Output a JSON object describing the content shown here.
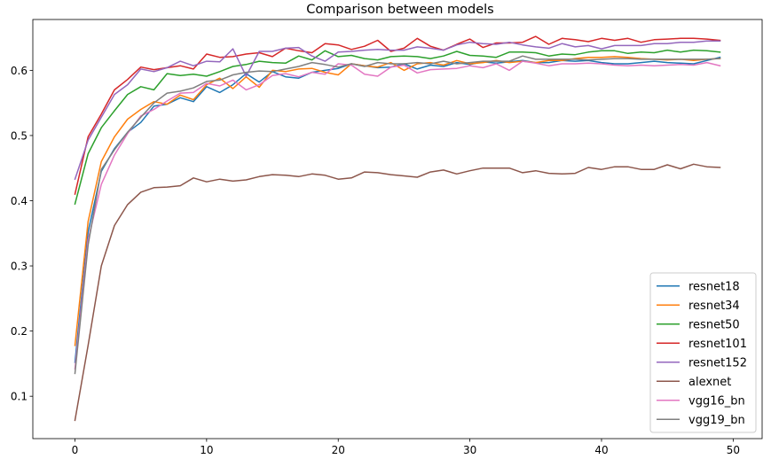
{
  "chart_data": {
    "type": "line",
    "title": "Comparison between models",
    "xlabel": "",
    "ylabel": "",
    "xlim": [
      -3.2,
      52.2
    ],
    "ylim": [
      0.035,
      0.678
    ],
    "xticks": [
      0,
      10,
      20,
      30,
      40,
      50
    ],
    "yticks": [
      0.1,
      0.2,
      0.3,
      0.4,
      0.5,
      0.6
    ],
    "grid": false,
    "legend_position": "lower-right",
    "x": [
      0,
      1,
      2,
      3,
      4,
      5,
      6,
      7,
      8,
      9,
      10,
      11,
      12,
      13,
      14,
      15,
      16,
      17,
      18,
      19,
      20,
      21,
      22,
      23,
      24,
      25,
      26,
      27,
      28,
      29,
      30,
      31,
      32,
      33,
      34,
      35,
      36,
      37,
      38,
      39,
      40,
      41,
      42,
      43,
      44,
      45,
      46,
      47,
      48,
      49
    ],
    "series": [
      {
        "name": "resnet18",
        "color": "#1f77b4",
        "values": [
          0.152,
          0.352,
          0.445,
          0.48,
          0.505,
          0.52,
          0.545,
          0.548,
          0.558,
          0.552,
          0.575,
          0.566,
          0.578,
          0.595,
          0.582,
          0.598,
          0.59,
          0.588,
          0.597,
          0.6,
          0.603,
          0.61,
          0.607,
          0.604,
          0.605,
          0.61,
          0.602,
          0.608,
          0.606,
          0.612,
          0.609,
          0.613,
          0.611,
          0.613,
          0.615,
          0.612,
          0.612,
          0.615,
          0.614,
          0.615,
          0.612,
          0.61,
          0.61,
          0.612,
          0.614,
          0.612,
          0.611,
          0.61,
          0.615,
          0.62
        ]
      },
      {
        "name": "resnet34",
        "color": "#ff7f0e",
        "values": [
          0.178,
          0.368,
          0.46,
          0.498,
          0.525,
          0.54,
          0.552,
          0.548,
          0.562,
          0.555,
          0.578,
          0.588,
          0.572,
          0.59,
          0.574,
          0.6,
          0.598,
          0.602,
          0.603,
          0.597,
          0.593,
          0.61,
          0.607,
          0.605,
          0.612,
          0.6,
          0.61,
          0.612,
          0.608,
          0.615,
          0.61,
          0.612,
          0.615,
          0.612,
          0.614,
          0.612,
          0.615,
          0.615,
          0.618,
          0.62,
          0.62,
          0.621,
          0.62,
          0.618,
          0.617,
          0.616,
          0.617,
          0.615,
          0.617,
          0.618
        ]
      },
      {
        "name": "resnet50",
        "color": "#2ca02c",
        "values": [
          0.395,
          0.472,
          0.512,
          0.538,
          0.563,
          0.575,
          0.57,
          0.595,
          0.592,
          0.594,
          0.591,
          0.598,
          0.606,
          0.609,
          0.614,
          0.612,
          0.611,
          0.622,
          0.616,
          0.63,
          0.621,
          0.623,
          0.618,
          0.616,
          0.621,
          0.622,
          0.621,
          0.618,
          0.622,
          0.629,
          0.623,
          0.622,
          0.62,
          0.628,
          0.628,
          0.627,
          0.622,
          0.625,
          0.624,
          0.628,
          0.63,
          0.63,
          0.626,
          0.628,
          0.627,
          0.631,
          0.628,
          0.631,
          0.63,
          0.628
        ]
      },
      {
        "name": "resnet101",
        "color": "#d62728",
        "values": [
          0.41,
          0.498,
          0.533,
          0.57,
          0.586,
          0.605,
          0.601,
          0.604,
          0.607,
          0.602,
          0.625,
          0.62,
          0.621,
          0.625,
          0.627,
          0.621,
          0.634,
          0.63,
          0.627,
          0.641,
          0.639,
          0.632,
          0.637,
          0.646,
          0.629,
          0.634,
          0.649,
          0.637,
          0.631,
          0.64,
          0.648,
          0.635,
          0.642,
          0.642,
          0.643,
          0.652,
          0.64,
          0.649,
          0.647,
          0.644,
          0.649,
          0.646,
          0.649,
          0.643,
          0.647,
          0.648,
          0.649,
          0.649,
          0.648,
          0.646
        ]
      },
      {
        "name": "resnet152",
        "color": "#9467bd",
        "values": [
          0.433,
          0.493,
          0.528,
          0.563,
          0.578,
          0.602,
          0.598,
          0.604,
          0.614,
          0.607,
          0.614,
          0.613,
          0.633,
          0.591,
          0.629,
          0.629,
          0.634,
          0.635,
          0.622,
          0.614,
          0.628,
          0.629,
          0.631,
          0.632,
          0.631,
          0.631,
          0.636,
          0.634,
          0.631,
          0.639,
          0.643,
          0.641,
          0.64,
          0.643,
          0.639,
          0.636,
          0.634,
          0.641,
          0.636,
          0.638,
          0.633,
          0.638,
          0.638,
          0.638,
          0.641,
          0.641,
          0.643,
          0.643,
          0.645,
          0.645
        ]
      },
      {
        "name": "alexnet",
        "color": "#8c564b",
        "values": [
          0.063,
          0.178,
          0.3,
          0.362,
          0.394,
          0.413,
          0.42,
          0.421,
          0.423,
          0.435,
          0.429,
          0.433,
          0.43,
          0.432,
          0.437,
          0.44,
          0.439,
          0.437,
          0.441,
          0.439,
          0.433,
          0.435,
          0.444,
          0.443,
          0.44,
          0.438,
          0.436,
          0.444,
          0.447,
          0.441,
          0.446,
          0.45,
          0.45,
          0.45,
          0.443,
          0.446,
          0.442,
          0.441,
          0.442,
          0.451,
          0.448,
          0.452,
          0.452,
          0.448,
          0.448,
          0.455,
          0.449,
          0.456,
          0.452,
          0.451
        ]
      },
      {
        "name": "vgg16_bn",
        "color": "#e377c2",
        "values": [
          0.142,
          0.34,
          0.425,
          0.47,
          0.503,
          0.53,
          0.54,
          0.553,
          0.565,
          0.566,
          0.58,
          0.576,
          0.585,
          0.57,
          0.578,
          0.592,
          0.595,
          0.59,
          0.597,
          0.594,
          0.61,
          0.608,
          0.594,
          0.591,
          0.605,
          0.608,
          0.596,
          0.601,
          0.602,
          0.603,
          0.607,
          0.604,
          0.61,
          0.6,
          0.614,
          0.611,
          0.607,
          0.61,
          0.61,
          0.611,
          0.61,
          0.608,
          0.607,
          0.608,
          0.607,
          0.608,
          0.609,
          0.608,
          0.612,
          0.607
        ]
      },
      {
        "name": "vgg19_bn",
        "color": "#7f7f7f",
        "values": [
          0.135,
          0.332,
          0.448,
          0.478,
          0.505,
          0.528,
          0.55,
          0.565,
          0.568,
          0.573,
          0.583,
          0.585,
          0.593,
          0.597,
          0.599,
          0.598,
          0.602,
          0.606,
          0.612,
          0.609,
          0.605,
          0.61,
          0.606,
          0.612,
          0.61,
          0.61,
          0.612,
          0.61,
          0.614,
          0.61,
          0.612,
          0.614,
          0.614,
          0.614,
          0.622,
          0.617,
          0.617,
          0.617,
          0.617,
          0.616,
          0.617,
          0.618,
          0.618,
          0.617,
          0.617,
          0.617,
          0.617,
          0.617,
          0.617,
          0.618
        ]
      }
    ]
  }
}
